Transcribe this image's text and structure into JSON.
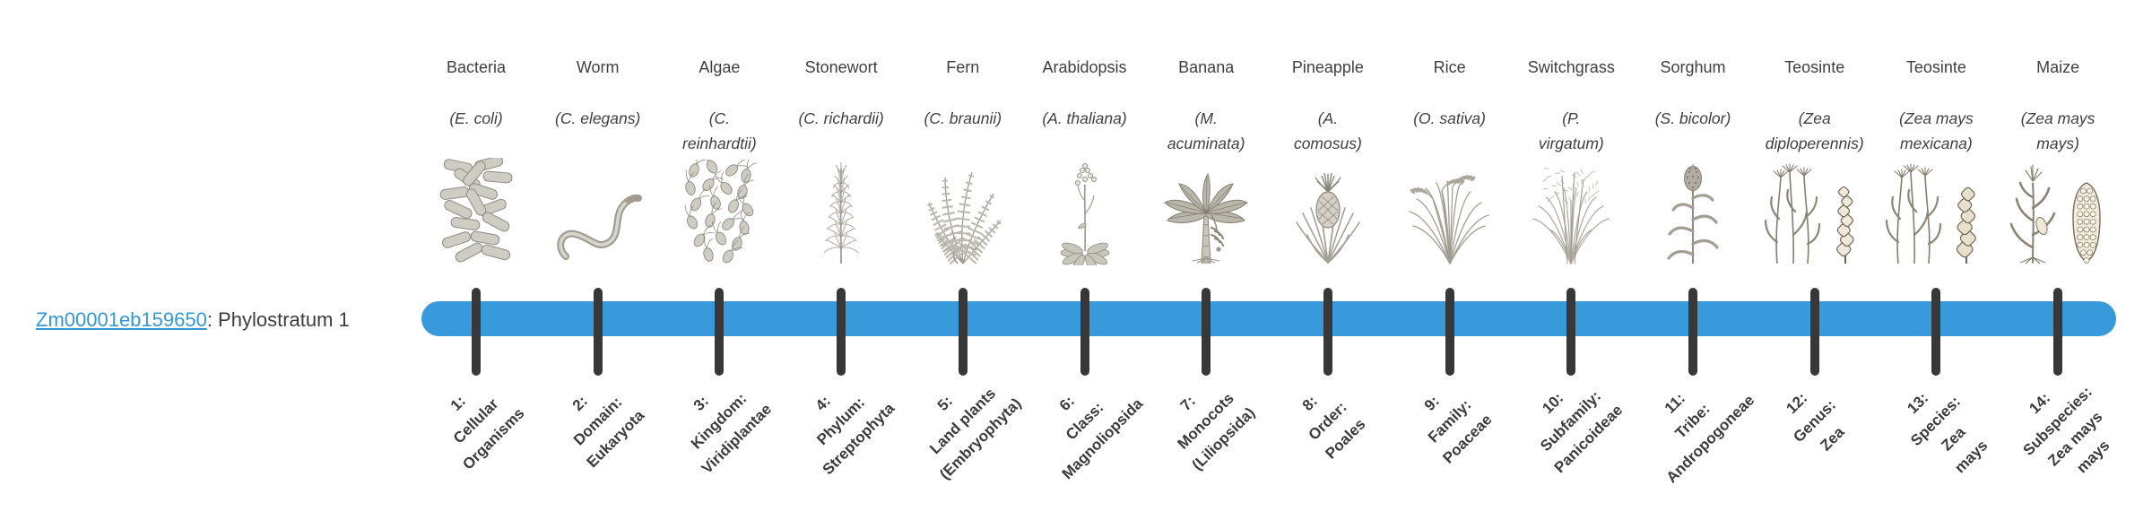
{
  "gene": {
    "id": "Zm00001eb159650",
    "suffix": ": Phylostratum 1",
    "link_color": "#3298d8"
  },
  "timeline": {
    "bar_color": "#3899db",
    "tick_color": "#383838",
    "text_color": "#3f3f3f"
  },
  "organisms": [
    {
      "name": "Bacteria",
      "species": "(E. coli)",
      "icon": "bacteria-icon",
      "stratum": "1:\nCellular\nOrganisms"
    },
    {
      "name": "Worm",
      "species": "(C. elegans)",
      "icon": "worm-icon",
      "stratum": "2:\nDomain:\nEukaryota"
    },
    {
      "name": "Algae",
      "species": "(C.\nreinhardtii)",
      "icon": "algae-icon",
      "stratum": "3:\nKingdom:\nViridiplantae"
    },
    {
      "name": "Stonewort",
      "species": "(C. richardii)",
      "icon": "stonewort-icon",
      "stratum": "4:\nPhylum:\nStreptophyta"
    },
    {
      "name": "Fern",
      "species": "(C. braunii)",
      "icon": "fern-icon",
      "stratum": "5:\nLand plants\n(Embryophyta)"
    },
    {
      "name": "Arabidopsis",
      "species": "(A. thaliana)",
      "icon": "arabidopsis-icon",
      "stratum": "6:\nClass:\nMagnoliopsida"
    },
    {
      "name": "Banana",
      "species": "(M.\nacuminata)",
      "icon": "banana-icon",
      "stratum": "7:\nMonocots\n(Liliopsida)"
    },
    {
      "name": "Pineapple",
      "species": "(A.\ncomosus)",
      "icon": "pineapple-icon",
      "stratum": "8:\nOrder:\nPoales"
    },
    {
      "name": "Rice",
      "species": "(O. sativa)",
      "icon": "rice-icon",
      "stratum": "9:\nFamily:\nPoaceae"
    },
    {
      "name": "Switchgrass",
      "species": "(P.\nvirgatum)",
      "icon": "switchgrass-icon",
      "stratum": "10:\nSubfamily:\nPanicoideae"
    },
    {
      "name": "Sorghum",
      "species": "(S. bicolor)",
      "icon": "sorghum-icon",
      "stratum": "11:\nTribe:\nAndropogoneae"
    },
    {
      "name": "Teosinte",
      "species": "(Zea\ndiploperennis)",
      "icon": "teosinte-diploperennis-icon",
      "stratum": "12:\nGenus:\nZea"
    },
    {
      "name": "Teosinte",
      "species": "(Zea mays\nmexicana)",
      "icon": "teosinte-mexicana-icon",
      "stratum": "13:\nSpecies:\nZea\nmays"
    },
    {
      "name": "Maize",
      "species": "(Zea mays\nmays)",
      "icon": "maize-icon",
      "stratum": "14:\nSubspecies:\nZea mays\nmays"
    }
  ]
}
